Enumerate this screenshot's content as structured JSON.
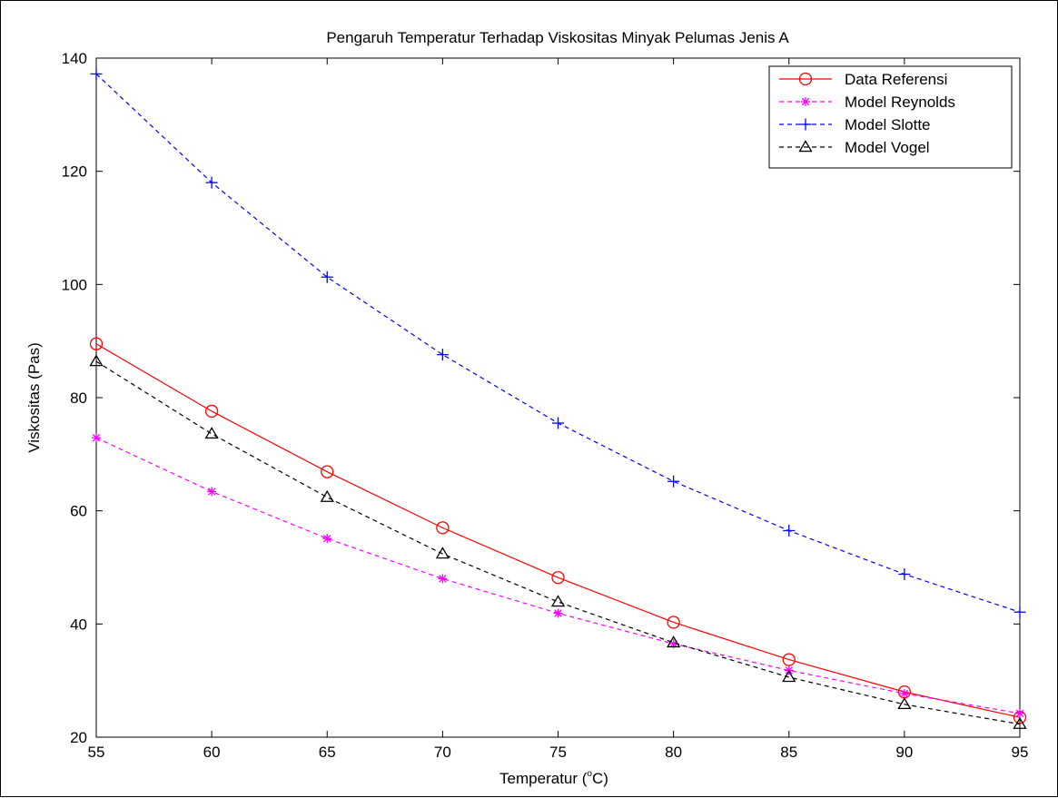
{
  "chart_data": {
    "type": "line",
    "title": "Pengaruh Temperatur Terhadap Viskositas Minyak Pelumas Jenis A",
    "xlabel": "Temperatur (",
    "xlabel_unit": "C)",
    "xlabel_degree": "o",
    "ylabel": "Viskositas (Pas)",
    "xlim": [
      55,
      95
    ],
    "ylim": [
      20,
      140
    ],
    "xticks": [
      55,
      60,
      65,
      70,
      75,
      80,
      85,
      90,
      95
    ],
    "yticks": [
      20,
      40,
      60,
      80,
      100,
      120,
      140
    ],
    "grid": false,
    "legend_position": "top-right",
    "x": [
      55,
      60,
      65,
      70,
      75,
      80,
      85,
      90,
      95
    ],
    "series": [
      {
        "name": "Data Referensi",
        "color": "#ff0000",
        "line_style": "solid",
        "marker": "circle",
        "values": [
          89.5,
          77.6,
          66.9,
          57.0,
          48.2,
          40.3,
          33.7,
          28.0,
          23.5
        ]
      },
      {
        "name": "Model Reynolds",
        "color": "#ff00ff",
        "line_style": "dashed",
        "marker": "star",
        "values": [
          72.9,
          63.4,
          55.1,
          48.0,
          41.9,
          36.5,
          31.8,
          27.7,
          24.2
        ]
      },
      {
        "name": "Model Slotte",
        "color": "#0000ff",
        "line_style": "dashed",
        "marker": "plus",
        "values": [
          137.2,
          118.0,
          101.3,
          87.6,
          75.5,
          65.2,
          56.5,
          48.8,
          42.1
        ]
      },
      {
        "name": "Model Vogel",
        "color": "#000000",
        "line_style": "dashed",
        "marker": "triangle",
        "values": [
          86.4,
          73.6,
          62.4,
          52.4,
          43.9,
          36.7,
          30.6,
          25.8,
          22.3
        ]
      }
    ]
  }
}
